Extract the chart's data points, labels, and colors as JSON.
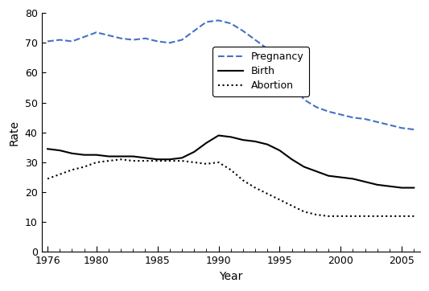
{
  "years": [
    1976,
    1977,
    1978,
    1979,
    1980,
    1981,
    1982,
    1983,
    1984,
    1985,
    1986,
    1987,
    1988,
    1989,
    1990,
    1991,
    1992,
    1993,
    1994,
    1995,
    1996,
    1997,
    1998,
    1999,
    2000,
    2001,
    2002,
    2003,
    2004,
    2005,
    2006
  ],
  "pregnancy": [
    70.5,
    71.0,
    70.5,
    72.0,
    73.5,
    72.5,
    71.5,
    71.0,
    71.5,
    70.5,
    70.0,
    71.0,
    74.0,
    77.0,
    77.5,
    76.5,
    74.0,
    71.0,
    68.0,
    63.0,
    57.0,
    51.0,
    48.5,
    47.0,
    46.0,
    45.0,
    44.5,
    43.5,
    42.5,
    41.5,
    41.0
  ],
  "birth": [
    34.5,
    34.0,
    33.0,
    32.5,
    32.5,
    32.0,
    32.0,
    32.0,
    31.5,
    31.0,
    31.0,
    31.5,
    33.5,
    36.5,
    39.0,
    38.5,
    37.5,
    37.0,
    36.0,
    34.0,
    31.0,
    28.5,
    27.0,
    25.5,
    25.0,
    24.5,
    23.5,
    22.5,
    22.0,
    21.5,
    21.5
  ],
  "abortion": [
    24.5,
    26.0,
    27.5,
    28.5,
    30.0,
    30.5,
    31.0,
    30.5,
    30.5,
    30.5,
    30.5,
    30.5,
    30.0,
    29.5,
    30.0,
    27.5,
    24.0,
    21.5,
    19.5,
    17.5,
    15.5,
    13.5,
    12.5,
    12.0,
    12.0,
    12.0,
    12.0,
    12.0,
    12.0,
    12.0,
    12.0
  ],
  "pregnancy_color": "#4472c4",
  "birth_color": "#000000",
  "abortion_color": "#000000",
  "title": "",
  "xlabel": "Year",
  "ylabel": "Rate",
  "ylim": [
    0,
    80
  ],
  "xlim": [
    1976,
    2006
  ],
  "yticks": [
    0,
    10,
    20,
    30,
    40,
    50,
    60,
    70,
    80
  ],
  "xticks": [
    1976,
    1980,
    1985,
    1990,
    1995,
    2000,
    2005
  ],
  "legend_labels": [
    "Pregnancy",
    "Birth",
    "Abortion"
  ],
  "background_color": "#ffffff"
}
